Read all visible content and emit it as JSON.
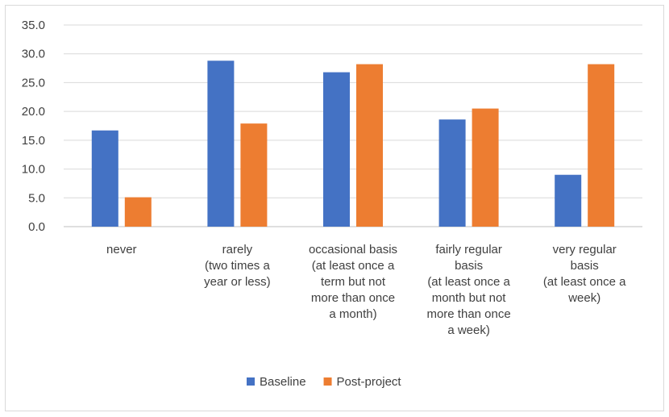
{
  "chart_data": {
    "type": "bar",
    "title": "",
    "xlabel": "",
    "ylabel": "",
    "ylim": [
      0,
      35
    ],
    "yticks": [
      "0.0",
      "5.0",
      "10.0",
      "15.0",
      "20.0",
      "25.0",
      "30.0",
      "35.0"
    ],
    "grid": true,
    "legend_position": "bottom",
    "categories": [
      [
        "never"
      ],
      [
        "rarely",
        "(two times a",
        "year or less)"
      ],
      [
        "occasional basis",
        "(at least once a",
        "term but not",
        "more than once",
        "a month)"
      ],
      [
        "fairly regular",
        "basis",
        "(at least once a",
        "month but not",
        "more than once",
        "a week)"
      ],
      [
        "very regular",
        "basis",
        "(at least once a",
        "week)"
      ]
    ],
    "series": [
      {
        "name": "Baseline",
        "color": "#4472c4",
        "values": [
          16.7,
          28.8,
          26.8,
          18.6,
          9.0
        ]
      },
      {
        "name": "Post-project",
        "color": "#ed7d31",
        "values": [
          5.1,
          17.9,
          28.2,
          20.5,
          28.2
        ]
      }
    ]
  }
}
